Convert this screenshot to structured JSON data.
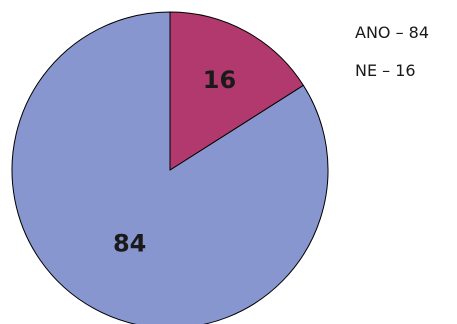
{
  "chart_data": {
    "type": "pie",
    "title": "",
    "categories": [
      "ANO",
      "NE"
    ],
    "values": [
      84,
      16
    ],
    "data_labels": [
      "84",
      "16"
    ],
    "colors": [
      "#8896cf",
      "#b2396e"
    ],
    "legend": {
      "placement": "top-right",
      "entries": [
        "ANO – 84",
        "NE – 16"
      ]
    },
    "start_angle_deg": 0,
    "direction": "clockwise"
  }
}
